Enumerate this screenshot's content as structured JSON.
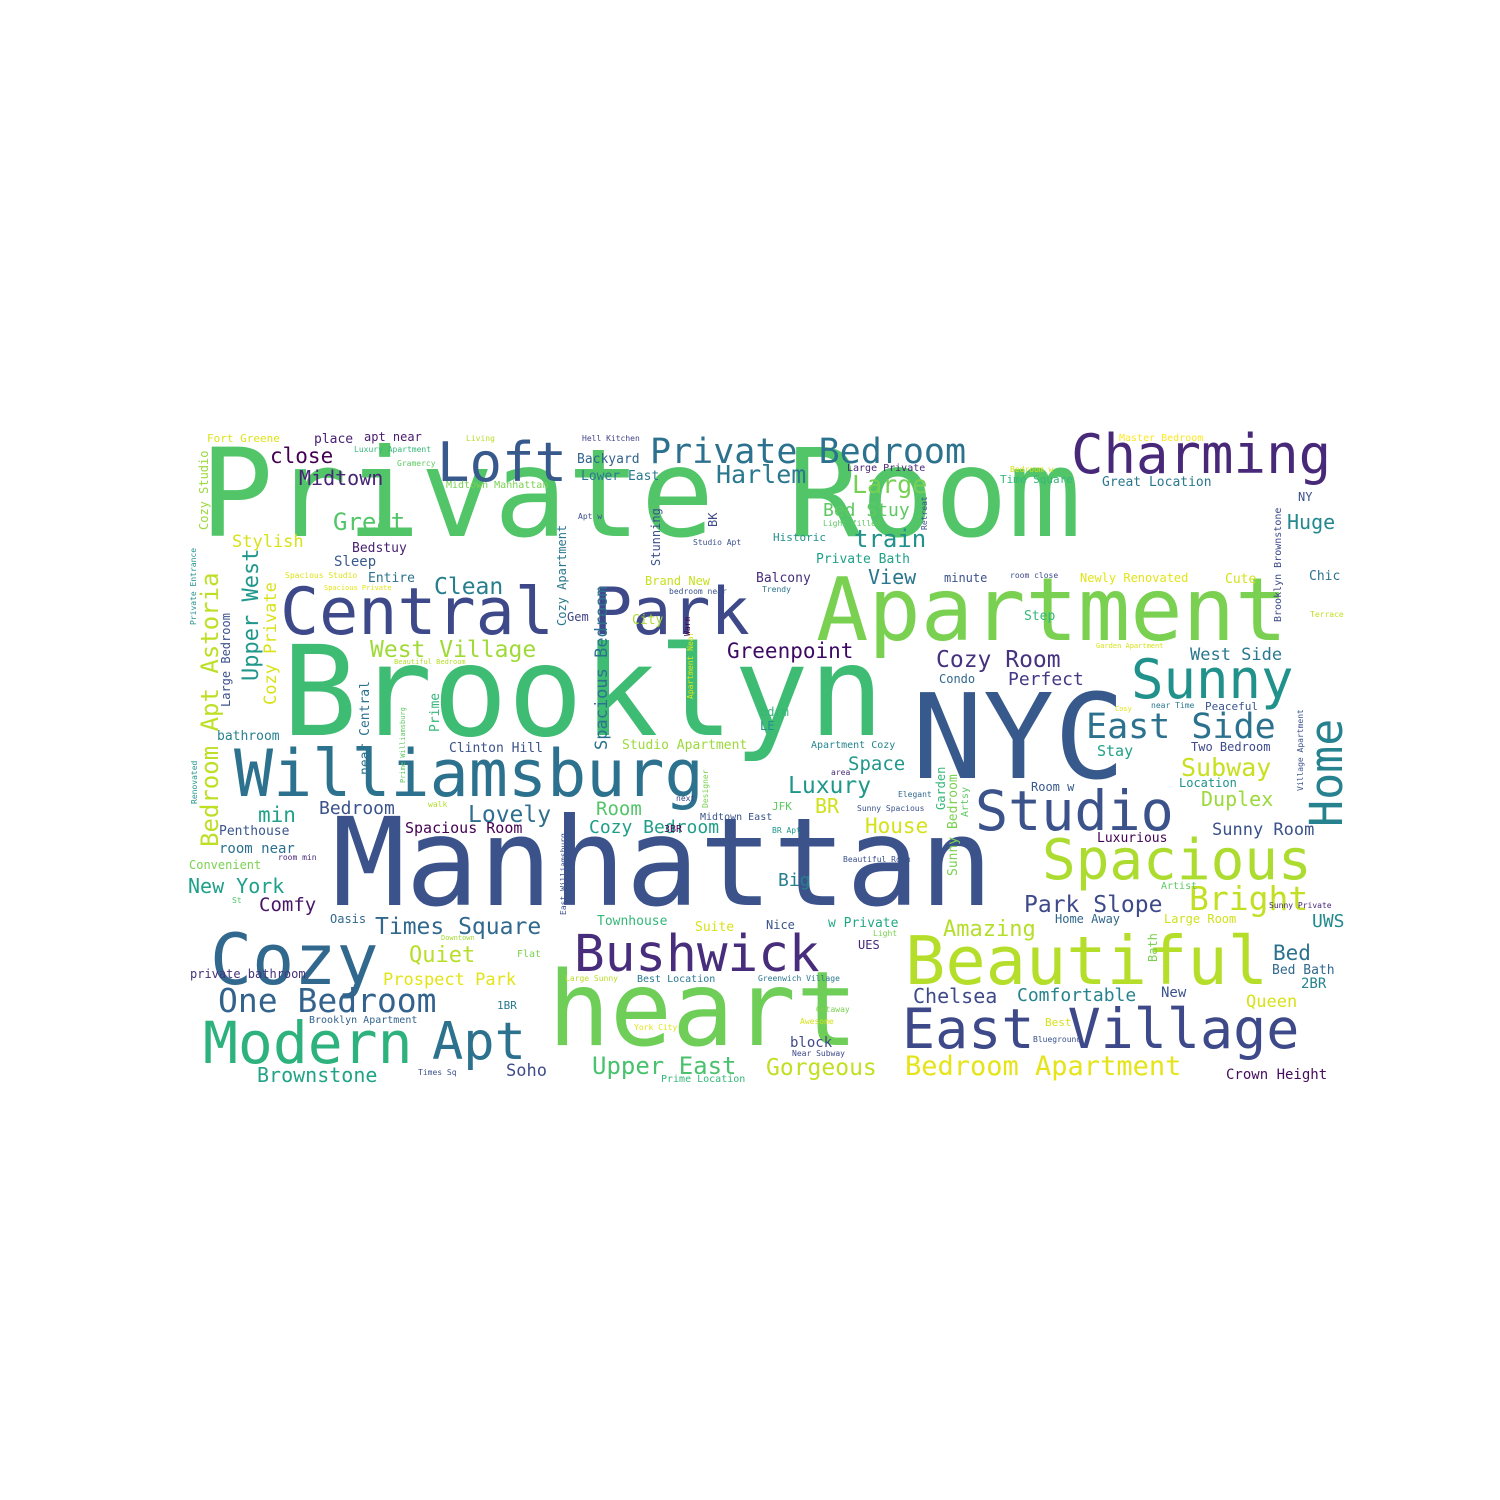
{
  "colors": {
    "palette": [
      "#440154",
      "#482878",
      "#3e4989",
      "#31688e",
      "#26828e",
      "#1f9e89",
      "#35b779",
      "#6ece58",
      "#b5de2b",
      "#fde725"
    ]
  },
  "words": [
    {
      "text": "Private Room",
      "color": "#52c569"
    },
    {
      "text": "Brooklyn",
      "color": "#3fbc73"
    },
    {
      "text": "Manhattan",
      "color": "#3b528b"
    },
    {
      "text": "NYC",
      "color": "#38598c"
    },
    {
      "text": "Apartment",
      "color": "#7ad151"
    },
    {
      "text": "heart",
      "color": "#6ece58"
    },
    {
      "text": "Central Park",
      "color": "#3e4989"
    },
    {
      "text": "Williamsburg",
      "color": "#2c728e"
    },
    {
      "text": "Beautiful",
      "color": "#b5de2b"
    },
    {
      "text": "Spacious",
      "color": "#addc30"
    },
    {
      "text": "Charming",
      "color": "#482878"
    },
    {
      "text": "Cozy",
      "color": "#31688e"
    },
    {
      "text": "Studio",
      "color": "#3b528b"
    },
    {
      "text": "Bushwick",
      "color": "#472d7b"
    },
    {
      "text": "Loft",
      "color": "#38598c"
    },
    {
      "text": "Sunny",
      "color": "#21918c"
    },
    {
      "text": "East Village",
      "color": "#3e4989"
    },
    {
      "text": "Modern",
      "color": "#2db27d"
    },
    {
      "text": "Apt",
      "color": "#2c728e"
    },
    {
      "text": "Home",
      "color": "#26828e"
    },
    {
      "text": "Private Bedroom",
      "color": "#2c728e"
    },
    {
      "text": "East Side",
      "color": "#2c728e"
    },
    {
      "text": "One Bedroom",
      "color": "#33638d"
    },
    {
      "text": "Bright",
      "color": "#c2df23"
    },
    {
      "text": "Bedroom Apartment",
      "color": "#e5e419"
    },
    {
      "text": "Cozy Room",
      "color": "#46327e"
    },
    {
      "text": "West Village",
      "color": "#a0da39"
    },
    {
      "text": "Greenpoint",
      "color": "#3d0965"
    },
    {
      "text": "Upper East",
      "color": "#4ac16d"
    },
    {
      "text": "Times Square",
      "color": "#31688e"
    },
    {
      "text": "Park Slope",
      "color": "#3e4989"
    },
    {
      "text": "Harlem",
      "color": "#2a788e"
    },
    {
      "text": "Large",
      "color": "#75d054"
    },
    {
      "text": "Midtown",
      "color": "#482475"
    },
    {
      "text": "Great",
      "color": "#52c569"
    },
    {
      "text": "Clean",
      "color": "#277f8e"
    },
    {
      "text": "train",
      "color": "#21918c"
    },
    {
      "text": "Luxury",
      "color": "#1f988b"
    },
    {
      "text": "Lovely",
      "color": "#2e6e8e"
    },
    {
      "text": "Subway",
      "color": "#c8e020"
    },
    {
      "text": "Gorgeous",
      "color": "#c2df23"
    },
    {
      "text": "Bedroom Apt Astoria",
      "color": "#bddf26"
    },
    {
      "text": "Upper West",
      "color": "#1f988b"
    },
    {
      "text": "Amazing",
      "color": "#b5de2b"
    },
    {
      "text": "Brownstone",
      "color": "#20a386"
    },
    {
      "text": "Chelsea",
      "color": "#3e4989"
    },
    {
      "text": "Comfortable",
      "color": "#26828e"
    },
    {
      "text": "New York",
      "color": "#1fa088"
    },
    {
      "text": "Quiet",
      "color": "#b8de29"
    },
    {
      "text": "Duplex",
      "color": "#9bd93c"
    },
    {
      "text": "close",
      "color": "#440154"
    },
    {
      "text": "Comfy",
      "color": "#481668"
    },
    {
      "text": "Room",
      "color": "#52c569"
    },
    {
      "text": "Cozy Bedroom",
      "color": "#1f9e89"
    },
    {
      "text": "Bedroom",
      "color": "#3b528b"
    },
    {
      "text": "min",
      "color": "#1fa188"
    },
    {
      "text": "Space",
      "color": "#1f988b"
    },
    {
      "text": "House",
      "color": "#d5e21a"
    },
    {
      "text": "Huge",
      "color": "#23898e"
    },
    {
      "text": "Bed Stuy",
      "color": "#5ec962"
    },
    {
      "text": "View",
      "color": "#2a768e"
    },
    {
      "text": "BR",
      "color": "#d0e11c"
    },
    {
      "text": "Big",
      "color": "#277f8e"
    },
    {
      "text": "Perfect",
      "color": "#443983"
    },
    {
      "text": "West Side",
      "color": "#2a788e"
    },
    {
      "text": "Bed",
      "color": "#2c728e"
    },
    {
      "text": "Soho",
      "color": "#3e4c8a"
    },
    {
      "text": "Prospect Park",
      "color": "#e2e418"
    },
    {
      "text": "Stylish",
      "color": "#d8e219"
    },
    {
      "text": "Spacious Room",
      "color": "#440154"
    },
    {
      "text": "Sunny Room",
      "color": "#3b528b"
    },
    {
      "text": "UWS",
      "color": "#23898e"
    },
    {
      "text": "Queen",
      "color": "#d8e219"
    },
    {
      "text": "Stay",
      "color": "#1fa187"
    },
    {
      "text": "Crown Height",
      "color": "#460b5e"
    }
  ],
  "small_words": [
    {
      "text": "Fort Greene",
      "color": "#dde318"
    },
    {
      "text": "place",
      "color": "#482173"
    },
    {
      "text": "apt near",
      "color": "#481b6d"
    },
    {
      "text": "Living",
      "color": "#b8de29"
    },
    {
      "text": "Hell Kitchen",
      "color": "#414487"
    },
    {
      "text": "Master Bedroom",
      "color": "#fde725"
    },
    {
      "text": "Backyard",
      "color": "#33638d"
    },
    {
      "text": "Lower East",
      "color": "#2a788e"
    },
    {
      "text": "Midtown Manhattan",
      "color": "#7ad151"
    },
    {
      "text": "Gramercy",
      "color": "#5ec962"
    },
    {
      "text": "Large Private",
      "color": "#482878"
    },
    {
      "text": "Time Square",
      "color": "#35b779"
    },
    {
      "text": "Great Location",
      "color": "#2a788e"
    },
    {
      "text": "Bedstuy",
      "color": "#481f70"
    },
    {
      "text": "Sleep",
      "color": "#38598c"
    },
    {
      "text": "Entire",
      "color": "#2c728e"
    },
    {
      "text": "Historic",
      "color": "#21918c"
    },
    {
      "text": "Private Bath",
      "color": "#1fa188"
    },
    {
      "text": "Brand New",
      "color": "#c8e020"
    },
    {
      "text": "Balcony",
      "color": "#472d7b"
    },
    {
      "text": "minute",
      "color": "#3b528b"
    },
    {
      "text": "Newly Renovated",
      "color": "#e2e418"
    },
    {
      "text": "Cute",
      "color": "#d2e21b"
    },
    {
      "text": "Chic",
      "color": "#2c728e"
    },
    {
      "text": "Step",
      "color": "#35b779"
    },
    {
      "text": "Gem",
      "color": "#414487"
    },
    {
      "text": "City",
      "color": "#addc30"
    },
    {
      "text": "Condo",
      "color": "#31688e"
    },
    {
      "text": "bdrm",
      "color": "#35b779"
    },
    {
      "text": "LE",
      "color": "#21918c"
    },
    {
      "text": "Clinton Hill",
      "color": "#3b528b"
    },
    {
      "text": "Studio Apartment",
      "color": "#9bd93c"
    },
    {
      "text": "Apartment Cozy",
      "color": "#25858e"
    },
    {
      "text": "Two Bedroom",
      "color": "#3e4989"
    },
    {
      "text": "bathroom",
      "color": "#26828e"
    },
    {
      "text": "Penthouse",
      "color": "#39568c"
    },
    {
      "text": "room near",
      "color": "#2d708e"
    },
    {
      "text": "Convenient",
      "color": "#7ad151"
    },
    {
      "text": "Location",
      "color": "#21918c"
    },
    {
      "text": "Room w",
      "color": "#38598c"
    },
    {
      "text": "Luxurious",
      "color": "#440154"
    },
    {
      "text": "JFK",
      "color": "#5ec962"
    },
    {
      "text": "Midtown East",
      "color": "#3b528b"
    },
    {
      "text": "Oasis",
      "color": "#31688e"
    },
    {
      "text": "Townhouse",
      "color": "#35b779"
    },
    {
      "text": "Suite",
      "color": "#d8e219"
    },
    {
      "text": "Nice",
      "color": "#3b528b"
    },
    {
      "text": "w Private",
      "color": "#22a884"
    },
    {
      "text": "Home Away",
      "color": "#31688e"
    },
    {
      "text": "Large Room",
      "color": "#d0e11c"
    },
    {
      "text": "Artist",
      "color": "#5ec962"
    },
    {
      "text": "UES",
      "color": "#482878"
    },
    {
      "text": "private bathroom",
      "color": "#46327e"
    },
    {
      "text": "Best Location",
      "color": "#2a788e"
    },
    {
      "text": "1BR",
      "color": "#2a788e"
    },
    {
      "text": "Brooklyn Apartment",
      "color": "#33638d"
    },
    {
      "text": "New",
      "color": "#3b528b"
    },
    {
      "text": "2BR",
      "color": "#26828e"
    },
    {
      "text": "Bed Bath",
      "color": "#31688e"
    },
    {
      "text": "block",
      "color": "#3e4989"
    },
    {
      "text": "Near Subway",
      "color": "#3e4989"
    },
    {
      "text": "Blueground",
      "color": "#3b528b"
    },
    {
      "text": "Best",
      "color": "#d5e21a"
    },
    {
      "text": "Times Sq",
      "color": "#3b528b"
    },
    {
      "text": "Prime Location",
      "color": "#35b779"
    },
    {
      "text": "Flat",
      "color": "#7ad151"
    },
    {
      "text": "Downtown",
      "color": "#a5db36"
    },
    {
      "text": "Large Sunny",
      "color": "#b8de29"
    },
    {
      "text": "Greenwich Village",
      "color": "#2a788e"
    },
    {
      "text": "Getaway",
      "color": "#7ad151"
    },
    {
      "text": "Awesome",
      "color": "#d5e21a"
    },
    {
      "text": "York City",
      "color": "#e2e418"
    },
    {
      "text": "Peaceful",
      "color": "#39568c"
    },
    {
      "text": "near Time",
      "color": "#2a788e"
    },
    {
      "text": "Sunny Private",
      "color": "#482878"
    },
    {
      "text": "Terrace",
      "color": "#c2df23"
    },
    {
      "text": "Garden Apartment",
      "color": "#d8e219"
    },
    {
      "text": "Light filled",
      "color": "#5ec962"
    },
    {
      "text": "Studio Apt",
      "color": "#3b528b"
    },
    {
      "text": "bedroom near",
      "color": "#3b528b"
    },
    {
      "text": "Trendy",
      "color": "#2c728e"
    },
    {
      "text": "room close",
      "color": "#3e4989"
    },
    {
      "text": "Spacious Studio",
      "color": "#dde318"
    },
    {
      "text": "Spacious Private",
      "color": "#e5e419"
    },
    {
      "text": "Beautiful Bedroom",
      "color": "#b5de2b"
    },
    {
      "text": "Cosy",
      "color": "#e2e418"
    },
    {
      "text": "area",
      "color": "#482878"
    },
    {
      "text": "next",
      "color": "#3e4989"
    },
    {
      "text": "Elegant",
      "color": "#31688e"
    },
    {
      "text": "Sunny Spacious",
      "color": "#3b528b"
    },
    {
      "text": "BR Apt",
      "color": "#1f988b"
    },
    {
      "text": "Beautiful Room",
      "color": "#3b528b"
    },
    {
      "text": "3BR",
      "color": "#440154"
    },
    {
      "text": "walk",
      "color": "#b5de2b"
    },
    {
      "text": "room min",
      "color": "#482878"
    },
    {
      "text": "St",
      "color": "#52c569"
    },
    {
      "text": "Light",
      "color": "#7ad151"
    },
    {
      "text": "Apt w",
      "color": "#3b528b"
    },
    {
      "text": "Warm",
      "color": "#440154"
    },
    {
      "text": "Bedroom w",
      "color": "#d5e21a"
    },
    {
      "text": "Luxury Apartment",
      "color": "#35b779"
    },
    {
      "text": "NY",
      "color": "#3b528b"
    }
  ],
  "vertical_words": [
    {
      "text": "Cozy Studio",
      "color": "#9bd93c"
    },
    {
      "text": "Private Entrance",
      "color": "#21918c"
    },
    {
      "text": "Large Bedroom",
      "color": "#3b528b"
    },
    {
      "text": "Cozy Private",
      "color": "#d8e219"
    },
    {
      "text": "Cozy Apartment",
      "color": "#2a788e"
    },
    {
      "text": "Spacious Bedroom",
      "color": "#2c728e"
    },
    {
      "text": "Stunning",
      "color": "#3b528b"
    },
    {
      "text": "BK",
      "color": "#3e4989"
    },
    {
      "text": "Retreat",
      "color": "#3b528b"
    },
    {
      "text": "Brooklyn Brownstone",
      "color": "#3e4989"
    },
    {
      "text": "near Central",
      "color": "#2c728e"
    },
    {
      "text": "Prime",
      "color": "#35b779"
    },
    {
      "text": "Prime Williamsburg",
      "color": "#5ec962"
    },
    {
      "text": "Renovated",
      "color": "#1f988b"
    },
    {
      "text": "Apartment Near",
      "color": "#e2e418"
    },
    {
      "text": "Designer",
      "color": "#7ad151"
    },
    {
      "text": "Garden",
      "color": "#35b779"
    },
    {
      "text": "Artsy",
      "color": "#5ec962"
    },
    {
      "text": "Sunny Bedroom",
      "color": "#7ad151"
    },
    {
      "text": "East Williamsburg",
      "color": "#3b528b"
    },
    {
      "text": "Bath",
      "color": "#7ad151"
    },
    {
      "text": "Village Apartment",
      "color": "#3b528b"
    }
  ]
}
